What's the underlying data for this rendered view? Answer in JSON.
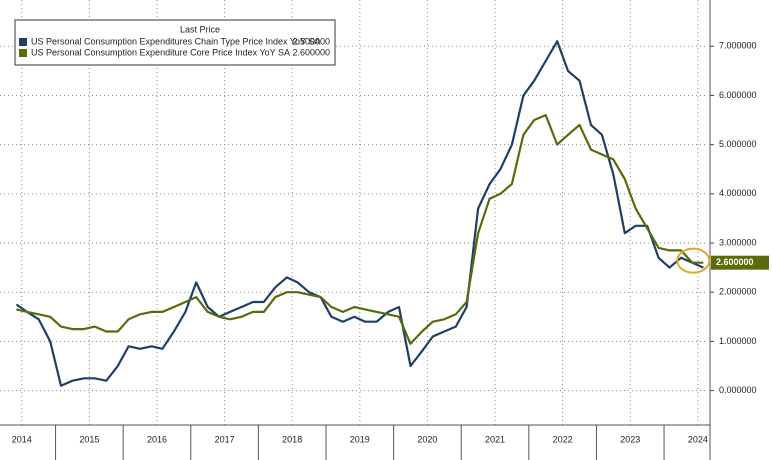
{
  "chart_data": {
    "type": "line",
    "legend_title": "Last Price",
    "x": [
      2014.42,
      2014.58,
      2014.75,
      2014.92,
      2015.08,
      2015.25,
      2015.42,
      2015.58,
      2015.75,
      2015.92,
      2016.08,
      2016.25,
      2016.42,
      2016.58,
      2016.75,
      2016.92,
      2017.08,
      2017.25,
      2017.42,
      2017.58,
      2017.75,
      2017.92,
      2018.08,
      2018.25,
      2018.42,
      2018.58,
      2018.75,
      2018.92,
      2019.08,
      2019.25,
      2019.42,
      2019.58,
      2019.75,
      2019.92,
      2020.08,
      2020.25,
      2020.42,
      2020.58,
      2020.75,
      2020.92,
      2021.08,
      2021.25,
      2021.42,
      2021.58,
      2021.75,
      2021.92,
      2022.08,
      2022.25,
      2022.42,
      2022.58,
      2022.75,
      2022.92,
      2023.08,
      2023.25,
      2023.42,
      2023.58,
      2023.75,
      2023.92,
      2024.08,
      2024.25,
      2024.42,
      2024.58
    ],
    "series": [
      {
        "name": "US Personal Consumption Expenditures Chain Type Price Index YoY SA",
        "color": "#1f3f66",
        "last_label": "2.500000",
        "values": [
          1.75,
          1.6,
          1.45,
          1.0,
          0.1,
          0.2,
          0.25,
          0.25,
          0.2,
          0.5,
          0.9,
          0.85,
          0.9,
          0.85,
          1.2,
          1.6,
          2.2,
          1.7,
          1.5,
          1.6,
          1.7,
          1.8,
          1.8,
          2.1,
          2.3,
          2.2,
          2.0,
          1.9,
          1.5,
          1.4,
          1.5,
          1.4,
          1.4,
          1.6,
          1.7,
          0.5,
          0.8,
          1.1,
          1.2,
          1.3,
          1.7,
          3.7,
          4.2,
          4.5,
          5.0,
          6.0,
          6.3,
          6.7,
          7.1,
          6.5,
          6.3,
          5.4,
          5.2,
          4.4,
          3.2,
          3.35,
          3.35,
          2.7,
          2.5,
          2.7,
          2.6,
          2.5
        ]
      },
      {
        "name": "US Personal Consumption Expenditure Core Price Index YoY SA",
        "color": "#5a6b0a",
        "last_label": "2.600000",
        "values": [
          1.65,
          1.6,
          1.55,
          1.5,
          1.3,
          1.25,
          1.25,
          1.3,
          1.2,
          1.2,
          1.45,
          1.55,
          1.6,
          1.6,
          1.7,
          1.8,
          1.9,
          1.6,
          1.5,
          1.45,
          1.5,
          1.6,
          1.6,
          1.9,
          2.0,
          2.0,
          1.95,
          1.9,
          1.7,
          1.6,
          1.7,
          1.65,
          1.6,
          1.55,
          1.5,
          0.95,
          1.2,
          1.4,
          1.45,
          1.55,
          1.8,
          3.2,
          3.9,
          4.0,
          4.2,
          5.2,
          5.5,
          5.6,
          5.0,
          5.2,
          5.4,
          4.9,
          4.8,
          4.7,
          4.3,
          3.7,
          3.3,
          2.9,
          2.85,
          2.85,
          2.6,
          2.6
        ]
      }
    ],
    "xlim": [
      2014.4,
      2024.65
    ],
    "xticks": [
      {
        "value": 2014.5,
        "label": "2014"
      },
      {
        "value": 2015.5,
        "label": "2015"
      },
      {
        "value": 2016.5,
        "label": "2016"
      },
      {
        "value": 2017.5,
        "label": "2017"
      },
      {
        "value": 2018.5,
        "label": "2018"
      },
      {
        "value": 2019.5,
        "label": "2019"
      },
      {
        "value": 2020.5,
        "label": "2020"
      },
      {
        "value": 2021.5,
        "label": "2021"
      },
      {
        "value": 2022.5,
        "label": "2022"
      },
      {
        "value": 2023.5,
        "label": "2023"
      },
      {
        "value": 2024.5,
        "label": "2024"
      }
    ],
    "ylim": [
      -0.7,
      7.9
    ],
    "yticks": [
      {
        "value": 0,
        "label": "0.000000"
      },
      {
        "value": 1,
        "label": "1.000000"
      },
      {
        "value": 2,
        "label": "2.000000"
      },
      {
        "value": 3,
        "label": "3.000000"
      },
      {
        "value": 4,
        "label": "4.000000"
      },
      {
        "value": 5,
        "label": "5.000000"
      },
      {
        "value": 6,
        "label": "6.000000"
      },
      {
        "value": 7,
        "label": "7.000000"
      }
    ],
    "grid": true
  }
}
